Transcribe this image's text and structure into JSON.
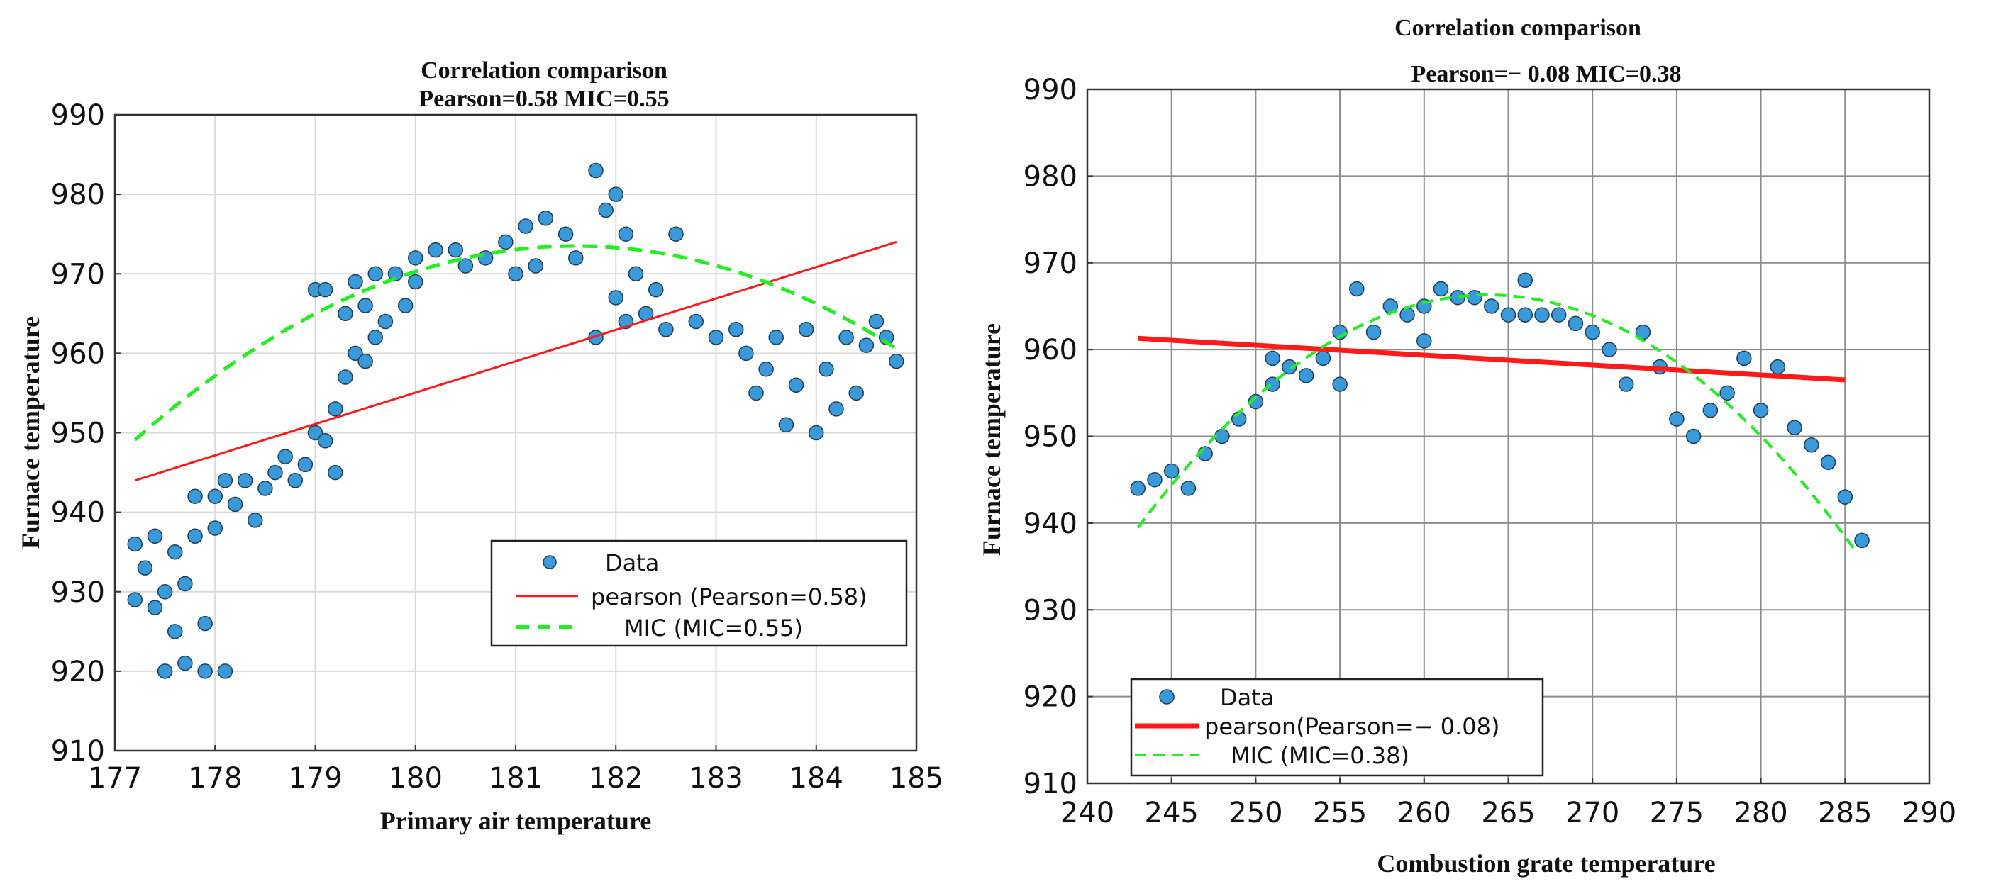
{
  "chart_data": [
    {
      "type": "scatter",
      "title": "Correlation comparison",
      "subtitle": "Pearson=0.58  MIC=0.55",
      "xlabel": "Primary air temperature",
      "ylabel": "Furnace temperature",
      "xlim": [
        177,
        185
      ],
      "ylim": [
        910,
        990
      ],
      "xticks": [
        177,
        178,
        179,
        180,
        181,
        182,
        183,
        184,
        185
      ],
      "yticks": [
        910,
        920,
        930,
        940,
        950,
        960,
        970,
        980,
        990
      ],
      "grid": true,
      "legend_position": "bottom-right",
      "legend": {
        "data_label": "Data",
        "pearson_label": "pearson (Pearson=0.58)",
        "mic_label": "MIC    (MIC=0.55)"
      },
      "colors": {
        "data": "#3a9ad9",
        "pearson": "#ff1a1a",
        "mic": "#22ee22"
      },
      "pearson_fit": {
        "x": [
          177.2,
          184.8
        ],
        "y": [
          944.0,
          974.0
        ]
      },
      "mic_fit": {
        "type": "quadratic",
        "x_range": [
          177.2,
          184.8
        ],
        "vertex_x": 181.6,
        "vertex_y": 973.5,
        "a": -1.26
      },
      "series": [
        {
          "name": "Data",
          "points": [
            [
              177.2,
              929
            ],
            [
              177.2,
              936
            ],
            [
              177.3,
              933
            ],
            [
              177.4,
              928
            ],
            [
              177.4,
              937
            ],
            [
              177.5,
              920
            ],
            [
              177.5,
              930
            ],
            [
              177.6,
              935
            ],
            [
              177.6,
              925
            ],
            [
              177.7,
              921
            ],
            [
              177.7,
              931
            ],
            [
              177.8,
              937
            ],
            [
              177.8,
              942
            ],
            [
              177.9,
              920
            ],
            [
              177.9,
              926
            ],
            [
              178.0,
              938
            ],
            [
              178.0,
              942
            ],
            [
              178.1,
              920
            ],
            [
              178.1,
              944
            ],
            [
              178.2,
              941
            ],
            [
              178.3,
              944
            ],
            [
              178.4,
              939
            ],
            [
              178.5,
              943
            ],
            [
              178.6,
              945
            ],
            [
              178.7,
              947
            ],
            [
              178.8,
              944
            ],
            [
              178.9,
              946
            ],
            [
              179.0,
              950
            ],
            [
              179.0,
              968
            ],
            [
              179.1,
              949
            ],
            [
              179.1,
              968
            ],
            [
              179.2,
              945
            ],
            [
              179.2,
              953
            ],
            [
              179.3,
              957
            ],
            [
              179.3,
              965
            ],
            [
              179.4,
              960
            ],
            [
              179.4,
              969
            ],
            [
              179.5,
              959
            ],
            [
              179.5,
              966
            ],
            [
              179.6,
              962
            ],
            [
              179.6,
              970
            ],
            [
              179.7,
              964
            ],
            [
              179.8,
              970
            ],
            [
              179.9,
              966
            ],
            [
              180.0,
              969
            ],
            [
              180.0,
              972
            ],
            [
              180.2,
              973
            ],
            [
              180.4,
              973
            ],
            [
              180.5,
              971
            ],
            [
              180.7,
              972
            ],
            [
              180.9,
              974
            ],
            [
              181.0,
              970
            ],
            [
              181.1,
              976
            ],
            [
              181.2,
              971
            ],
            [
              181.3,
              977
            ],
            [
              181.5,
              975
            ],
            [
              181.6,
              972
            ],
            [
              181.8,
              983
            ],
            [
              181.8,
              962
            ],
            [
              181.9,
              978
            ],
            [
              182.0,
              967
            ],
            [
              182.0,
              980
            ],
            [
              182.1,
              964
            ],
            [
              182.1,
              975
            ],
            [
              182.2,
              970
            ],
            [
              182.3,
              965
            ],
            [
              182.4,
              968
            ],
            [
              182.5,
              963
            ],
            [
              182.6,
              975
            ],
            [
              182.8,
              964
            ],
            [
              183.0,
              962
            ],
            [
              183.2,
              963
            ],
            [
              183.3,
              960
            ],
            [
              183.4,
              955
            ],
            [
              183.5,
              958
            ],
            [
              183.6,
              962
            ],
            [
              183.7,
              951
            ],
            [
              183.8,
              956
            ],
            [
              183.9,
              963
            ],
            [
              184.0,
              950
            ],
            [
              184.1,
              958
            ],
            [
              184.2,
              953
            ],
            [
              184.3,
              962
            ],
            [
              184.4,
              955
            ],
            [
              184.5,
              961
            ],
            [
              184.6,
              964
            ],
            [
              184.7,
              962
            ],
            [
              184.8,
              959
            ]
          ]
        }
      ]
    },
    {
      "type": "scatter",
      "title": "Correlation comparison",
      "subtitle": "Pearson=− 0.08  MIC=0.38",
      "xlabel": "Combustion grate temperature",
      "ylabel": "Furnace temperature",
      "xlim": [
        240,
        290
      ],
      "ylim": [
        910,
        990
      ],
      "xticks": [
        240,
        245,
        250,
        255,
        260,
        265,
        270,
        275,
        280,
        285,
        290
      ],
      "yticks": [
        910,
        920,
        930,
        940,
        950,
        960,
        970,
        980,
        990
      ],
      "grid": true,
      "legend_position": "bottom-left",
      "legend": {
        "data_label": "Data",
        "pearson_label": "pearson(Pearson=− 0.08)",
        "mic_label": "MIC    (MIC=0.38)"
      },
      "colors": {
        "data": "#3a9ad9",
        "pearson": "#ff1a1a",
        "mic": "#22ee22"
      },
      "pearson_fit": {
        "x": [
          243,
          285
        ],
        "y": [
          961.3,
          956.5
        ]
      },
      "mic_fit": {
        "type": "quadratic",
        "x_range": [
          243,
          285.5
        ],
        "vertex_x": 263.8,
        "vertex_y": 966.3,
        "a": -0.062
      },
      "series": [
        {
          "name": "Data",
          "points": [
            [
              243,
              944
            ],
            [
              244,
              945
            ],
            [
              245,
              946
            ],
            [
              246,
              944
            ],
            [
              247,
              948
            ],
            [
              248,
              950
            ],
            [
              249,
              952
            ],
            [
              250,
              954
            ],
            [
              251,
              956
            ],
            [
              251,
              959
            ],
            [
              252,
              958
            ],
            [
              253,
              957
            ],
            [
              254,
              959
            ],
            [
              255,
              956
            ],
            [
              255,
              962
            ],
            [
              256,
              967
            ],
            [
              257,
              962
            ],
            [
              258,
              965
            ],
            [
              259,
              964
            ],
            [
              260,
              961
            ],
            [
              260,
              965
            ],
            [
              261,
              967
            ],
            [
              262,
              966
            ],
            [
              263,
              966
            ],
            [
              264,
              965
            ],
            [
              265,
              964
            ],
            [
              266,
              964
            ],
            [
              266,
              968
            ],
            [
              267,
              964
            ],
            [
              268,
              964
            ],
            [
              269,
              963
            ],
            [
              270,
              962
            ],
            [
              271,
              960
            ],
            [
              272,
              956
            ],
            [
              273,
              962
            ],
            [
              274,
              958
            ],
            [
              275,
              952
            ],
            [
              276,
              950
            ],
            [
              277,
              953
            ],
            [
              278,
              955
            ],
            [
              279,
              959
            ],
            [
              280,
              953
            ],
            [
              281,
              958
            ],
            [
              282,
              951
            ],
            [
              283,
              949
            ],
            [
              284,
              947
            ],
            [
              285,
              943
            ],
            [
              286,
              938
            ]
          ]
        }
      ]
    }
  ]
}
